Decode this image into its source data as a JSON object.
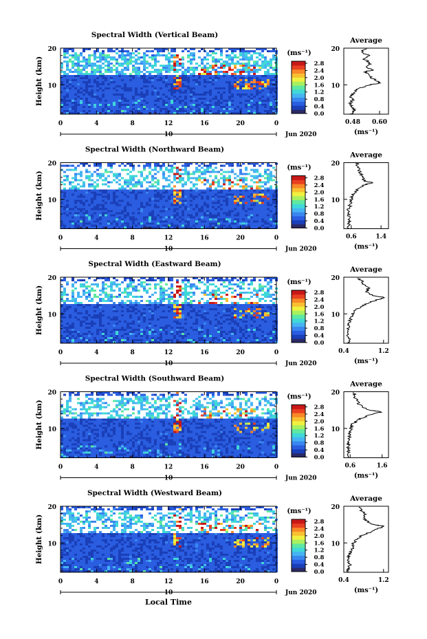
{
  "chart_data": {
    "type": "heatmap",
    "x_axis_label": "Local Time",
    "date_label": "Jun 2020",
    "day_label": "10",
    "x_ticks": [
      "0",
      "4",
      "8",
      "12",
      "16",
      "20",
      "0"
    ],
    "x_range": [
      0,
      24
    ],
    "y_axis_label": "Height (km)",
    "y_ticks": [
      "20",
      "10"
    ],
    "y_range": [
      2,
      20
    ],
    "colorbar": {
      "unit_label": "(ms⁻¹)",
      "tick_labels": [
        "2.8",
        "2.4",
        "2.0",
        "1.6",
        "1.2",
        "0.8",
        "0.4",
        "0.0"
      ],
      "range": [
        0,
        3.0
      ],
      "colors": [
        "#2a2a66",
        "#1a3fb8",
        "#2a5de0",
        "#3a86f0",
        "#46b4f2",
        "#40d8d8",
        "#5ee8a0",
        "#a8f060",
        "#f0f040",
        "#f8c030",
        "#f88828",
        "#e84020",
        "#c81818"
      ]
    },
    "average_title": "Average",
    "average_unit_label": "(ms⁻¹)",
    "panels": [
      {
        "title": "Spectral Width (Vertical Beam)",
        "avg_xticks": [
          "0.48",
          "0.60"
        ],
        "avg_xrange": [
          0.44,
          0.64
        ],
        "avg_profile": {
          "height": [
            2,
            3,
            4,
            5,
            6,
            7,
            8,
            9,
            10,
            10.5,
            11,
            12,
            13,
            13.5,
            14,
            15,
            16,
            17,
            18,
            19,
            20
          ],
          "value": [
            0.47,
            0.49,
            0.48,
            0.47,
            0.48,
            0.47,
            0.49,
            0.5,
            0.56,
            0.6,
            0.59,
            0.56,
            0.55,
            0.53,
            0.57,
            0.54,
            0.56,
            0.53,
            0.55,
            0.52,
            0.54
          ]
        }
      },
      {
        "title": "Spectral Width (Northward Beam)",
        "avg_xticks": [
          "0.6",
          "1.4"
        ],
        "avg_xrange": [
          0.4,
          1.6
        ],
        "avg_profile": {
          "height": [
            2,
            3,
            4,
            5,
            6,
            7,
            8,
            9,
            10,
            11,
            12,
            13,
            14,
            14.5,
            15,
            16,
            17,
            18,
            19,
            20
          ],
          "value": [
            0.55,
            0.52,
            0.55,
            0.53,
            0.55,
            0.52,
            0.56,
            0.58,
            0.6,
            0.62,
            0.7,
            0.8,
            0.95,
            1.2,
            0.98,
            0.9,
            0.85,
            0.8,
            0.78,
            0.75
          ]
        }
      },
      {
        "title": "Spectral Width (Eastward Beam)",
        "avg_xticks": [
          "0.4",
          "1.2"
        ],
        "avg_xrange": [
          0.4,
          1.3
        ],
        "avg_profile": {
          "height": [
            2,
            3,
            4,
            5,
            6,
            7,
            8,
            9,
            10,
            11,
            12,
            13,
            14,
            14.5,
            15,
            16,
            17,
            18,
            19,
            20
          ],
          "value": [
            0.48,
            0.5,
            0.47,
            0.49,
            0.48,
            0.5,
            0.52,
            0.55,
            0.58,
            0.62,
            0.75,
            0.9,
            1.1,
            1.22,
            1.0,
            0.85,
            0.9,
            0.8,
            0.75,
            0.7
          ]
        }
      },
      {
        "title": "Spectral Width (Southward Beam)",
        "avg_xticks": [
          "0.6",
          "1.6"
        ],
        "avg_xrange": [
          0.4,
          1.8
        ],
        "avg_profile": {
          "height": [
            2,
            3,
            4,
            5,
            6,
            7,
            8,
            9,
            10,
            11,
            12,
            13,
            14,
            14.5,
            15,
            16,
            17,
            18,
            19,
            20
          ],
          "value": [
            0.55,
            0.52,
            0.56,
            0.53,
            0.55,
            0.54,
            0.58,
            0.6,
            0.62,
            0.65,
            0.8,
            1.0,
            1.35,
            1.6,
            1.2,
            0.95,
            0.85,
            0.78,
            0.75,
            0.72
          ]
        }
      },
      {
        "title": "Spectral Width (Westward Beam)",
        "avg_xticks": [
          "0.4",
          "1.2"
        ],
        "avg_xrange": [
          0.4,
          1.3
        ],
        "avg_profile": {
          "height": [
            2,
            3,
            4,
            5,
            6,
            7,
            8,
            9,
            10,
            11,
            12,
            13,
            14,
            14.5,
            15,
            16,
            17,
            18,
            19,
            20
          ],
          "value": [
            0.5,
            0.48,
            0.52,
            0.49,
            0.5,
            0.52,
            0.55,
            0.58,
            0.6,
            0.65,
            0.75,
            0.95,
            1.1,
            1.22,
            1.0,
            0.85,
            0.8,
            0.82,
            0.75,
            0.72
          ]
        }
      }
    ]
  }
}
